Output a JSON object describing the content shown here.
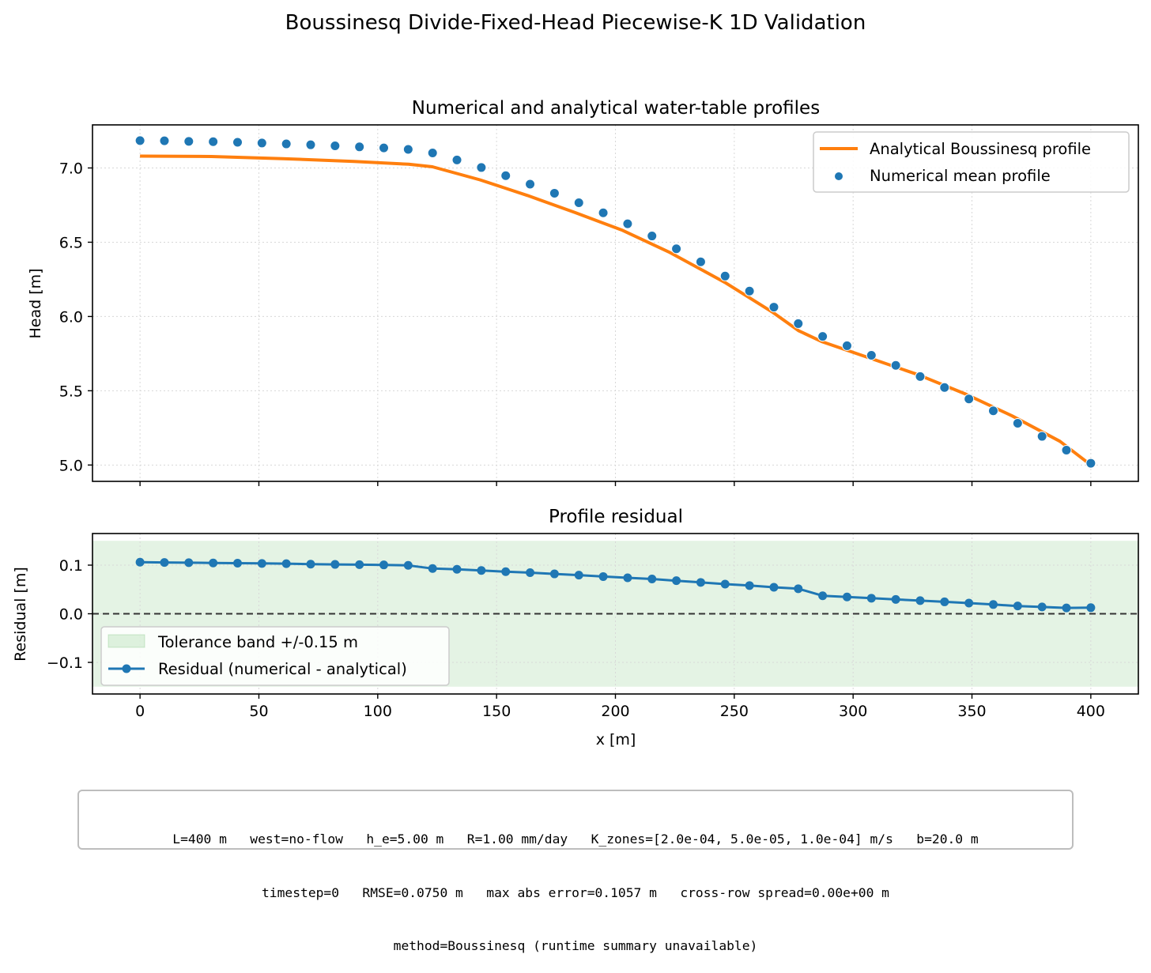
{
  "figure": {
    "title": "Boussinesq Divide-Fixed-Head Piecewise-K 1D Validation"
  },
  "colors": {
    "analytical": "#ff7f0e",
    "numerical": "#1f77b4",
    "band": "#2ca02c",
    "zero_line": "#333333",
    "grid": "#d8d8d8"
  },
  "chart_data": [
    {
      "type": "line",
      "title": "Numerical and analytical water-table profiles",
      "xlabel": "",
      "ylabel": "Head [m]",
      "xlim": [
        -20,
        420
      ],
      "ylim": [
        4.89,
        7.29
      ],
      "yticks": [
        5.0,
        5.5,
        6.0,
        6.5,
        7.0
      ],
      "ytick_labels": [
        "5.0",
        "5.5",
        "6.0",
        "6.5",
        "7.0"
      ],
      "xticks": [
        0,
        50,
        100,
        150,
        200,
        250,
        300,
        350,
        400
      ],
      "grid": true,
      "legend_position": "top-right",
      "series": [
        {
          "name": "Analytical Boussinesq profile",
          "kind": "line",
          "x": [
            0,
            30,
            60,
            90,
            113,
            123,
            143,
            163,
            183,
            203,
            223,
            246,
            266,
            277,
            287,
            307,
            327,
            347,
            367,
            387,
            400
          ],
          "y": [
            7.08,
            7.077,
            7.063,
            7.044,
            7.025,
            7.008,
            6.92,
            6.815,
            6.7,
            6.58,
            6.43,
            6.23,
            6.03,
            5.905,
            5.83,
            5.72,
            5.61,
            5.48,
            5.33,
            5.16,
            5.0
          ]
        },
        {
          "name": "Numerical mean profile",
          "kind": "scatter",
          "x": [
            0,
            10.26,
            20.51,
            30.77,
            41.03,
            51.28,
            61.54,
            71.79,
            82.05,
            92.31,
            102.56,
            112.82,
            123.08,
            133.33,
            143.59,
            153.85,
            164.1,
            174.36,
            184.62,
            194.87,
            205.13,
            215.38,
            225.64,
            235.9,
            246.15,
            256.41,
            266.67,
            276.92,
            287.18,
            297.44,
            307.69,
            317.95,
            328.21,
            338.46,
            348.72,
            358.97,
            369.23,
            379.49,
            389.74,
            400
          ],
          "y": [
            7.184,
            7.183,
            7.179,
            7.177,
            7.173,
            7.168,
            7.162,
            7.156,
            7.149,
            7.142,
            7.135,
            7.125,
            7.101,
            7.054,
            7.003,
            6.948,
            6.891,
            6.83,
            6.766,
            6.698,
            6.624,
            6.542,
            6.456,
            6.368,
            6.272,
            6.171,
            6.063,
            5.952,
            5.866,
            5.803,
            5.739,
            5.671,
            5.596,
            5.522,
            5.445,
            5.365,
            5.281,
            5.193,
            5.1,
            5.012
          ]
        }
      ]
    },
    {
      "type": "line",
      "title": "Profile residual",
      "xlabel": "x [m]",
      "ylabel": "Residual [m]",
      "xlim": [
        -20,
        420
      ],
      "ylim": [
        -0.165,
        0.165
      ],
      "yticks": [
        -0.1,
        0.0,
        0.1
      ],
      "ytick_labels": [
        "−0.1",
        "0.0",
        "0.1"
      ],
      "xticks": [
        0,
        50,
        100,
        150,
        200,
        250,
        300,
        350,
        400
      ],
      "xtick_labels": [
        "0",
        "50",
        "100",
        "150",
        "200",
        "250",
        "300",
        "350",
        "400"
      ],
      "grid": true,
      "legend_position": "lower-left",
      "band": {
        "name": "Tolerance band +/-0.15 m",
        "lower": -0.15,
        "upper": 0.15
      },
      "zero_line": 0.0,
      "series": [
        {
          "name": "Residual (numerical - analytical)",
          "kind": "line+markers",
          "x": [
            0,
            10.26,
            20.51,
            30.77,
            41.03,
            51.28,
            61.54,
            71.79,
            82.05,
            92.31,
            102.56,
            112.82,
            123.08,
            133.33,
            143.59,
            153.85,
            164.1,
            174.36,
            184.62,
            194.87,
            205.13,
            215.38,
            225.64,
            235.9,
            246.15,
            256.41,
            266.67,
            276.92,
            287.18,
            297.44,
            307.69,
            317.95,
            328.21,
            338.46,
            348.72,
            358.97,
            369.23,
            379.49,
            389.74,
            400
          ],
          "y": [
            0.106,
            0.1055,
            0.105,
            0.1045,
            0.104,
            0.1035,
            0.103,
            0.102,
            0.1015,
            0.101,
            0.1005,
            0.0995,
            0.093,
            0.0915,
            0.089,
            0.0865,
            0.0845,
            0.082,
            0.0795,
            0.0765,
            0.074,
            0.0715,
            0.068,
            0.0645,
            0.061,
            0.058,
            0.0545,
            0.0515,
            0.037,
            0.0345,
            0.032,
            0.0295,
            0.027,
            0.0245,
            0.022,
            0.019,
            0.016,
            0.014,
            0.012,
            0.0125
          ]
        }
      ]
    }
  ],
  "info": {
    "line1": "L=400 m   west=no-flow   h_e=5.00 m   R=1.00 mm/day   K_zones=[2.0e-04, 5.0e-05, 1.0e-04] m/s   b=20.0 m",
    "line2": "timestep=0   RMSE=0.0750 m   max abs error=0.1057 m   cross-row spread=0.00e+00 m",
    "line3": "method=Boussinesq (runtime summary unavailable)"
  }
}
